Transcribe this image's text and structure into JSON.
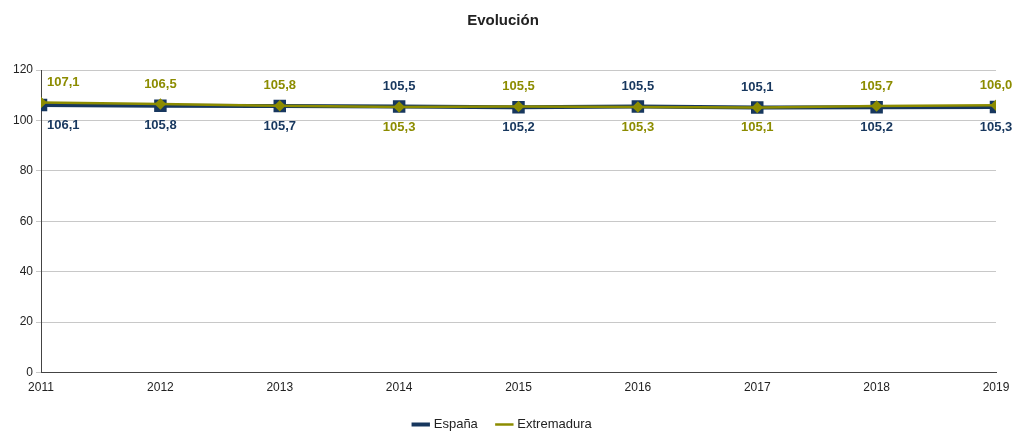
{
  "chart_data": {
    "type": "line",
    "title": "Evolución",
    "x": [
      2011,
      2012,
      2013,
      2014,
      2015,
      2016,
      2017,
      2018,
      2019
    ],
    "series": [
      {
        "name": "España",
        "color": "#17375e",
        "marker": "square",
        "values": [
          106.1,
          105.8,
          105.7,
          105.5,
          105.2,
          105.5,
          105.1,
          105.2,
          105.3
        ],
        "value_labels": [
          "106,1",
          "105,8",
          "105,7",
          "105,5",
          "105,2",
          "105,5",
          "105,1",
          "105,2",
          "105,3"
        ]
      },
      {
        "name": "Extremadura",
        "color": "#8c8c00",
        "marker": "diamond",
        "values": [
          107.1,
          106.5,
          105.8,
          105.3,
          105.5,
          105.3,
          105.1,
          105.7,
          106.0
        ],
        "value_labels": [
          "107,1",
          "106,5",
          "105,8",
          "105,3",
          "105,5",
          "105,3",
          "105,1",
          "105,7",
          "106,0"
        ]
      }
    ],
    "xlim": [
      2011,
      2019
    ],
    "xticks": [
      2011,
      2012,
      2013,
      2014,
      2015,
      2016,
      2017,
      2018,
      2019
    ],
    "ylim": [
      0,
      120
    ],
    "yticks": [
      0,
      20,
      40,
      60,
      80,
      100,
      120
    ],
    "grid": "y",
    "legend": "bottom",
    "line_style": "solid"
  }
}
